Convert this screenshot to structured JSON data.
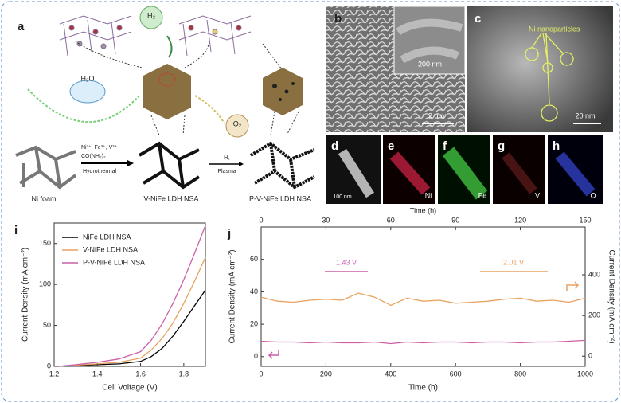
{
  "panels": {
    "a": {
      "label": "a",
      "substrate": "Ni foam",
      "product1": "V-NiFe LDH NSA",
      "product2": "P-V-NiFe LDH NSA",
      "precursors": "Ni²⁺, Fe³⁺, V³⁺",
      "urea": "CO(NH₂)₂",
      "step1": "Hydrothermal",
      "gas": "H₂",
      "step2": "Plasma",
      "water": "H₂O",
      "h2": "H₂",
      "o2": "O₂"
    },
    "b": {
      "label": "b",
      "inset_scale": "200 nm",
      "scale": "2 μm"
    },
    "c": {
      "label": "c",
      "annotation": "Ni nanoparticles",
      "scale": "20 nm"
    },
    "d": {
      "label": "d",
      "scale": "100 nm"
    },
    "e": {
      "label": "e",
      "element": "Ni"
    },
    "f": {
      "label": "f",
      "element": "Fe"
    },
    "g": {
      "label": "g",
      "element": "V"
    },
    "h": {
      "label": "h",
      "element": "O"
    }
  },
  "chart_data": [
    {
      "type": "line",
      "label": "i",
      "xlabel": "Cell Voltage (V)",
      "ylabel": "Current Density (mA cm⁻²)",
      "x": [
        1.22,
        1.3,
        1.4,
        1.5,
        1.6,
        1.65,
        1.7,
        1.75,
        1.8,
        1.85,
        1.9
      ],
      "xlim": [
        1.2,
        1.9
      ],
      "xticks": [
        1.2,
        1.4,
        1.6,
        1.8
      ],
      "ylim": [
        0,
        175
      ],
      "yticks": [
        0,
        50,
        100,
        150
      ],
      "legend": "upper left",
      "series": [
        {
          "name": "NiFe LDH NSA",
          "color": "#000000",
          "values": [
            0,
            1,
            2,
            3,
            6,
            12,
            22,
            37,
            55,
            74,
            93
          ]
        },
        {
          "name": "V-NiFe LDH NSA",
          "color": "#e8a25e",
          "values": [
            0,
            1.5,
            3,
            5,
            10,
            20,
            34,
            53,
            77,
            104,
            133
          ]
        },
        {
          "name": "P-V-NiFe LDH NSA",
          "color": "#cc5fa8",
          "values": [
            0,
            2,
            5,
            9,
            18,
            32,
            52,
            77,
            106,
            138,
            172
          ]
        }
      ]
    },
    {
      "type": "line",
      "label": "j",
      "xlabel": "Time (h)",
      "x2label": "Time (h)",
      "ylabel": "Current Density (mA cm⁻²)",
      "y2label": "Current Density (mA cm⁻²)",
      "x": [
        0,
        50,
        100,
        150,
        200,
        250,
        300,
        350,
        400,
        450,
        500,
        550,
        600,
        650,
        700,
        750,
        800,
        850,
        900,
        950,
        1000
      ],
      "xlim": [
        0,
        1000
      ],
      "xticks": [
        0,
        200,
        400,
        600,
        800,
        1000
      ],
      "x2lim": [
        0,
        150
      ],
      "x2ticks": [
        0,
        30,
        60,
        90,
        120,
        150
      ],
      "ylim": [
        -6,
        80
      ],
      "yticks": [
        0,
        20,
        40,
        60
      ],
      "y2lim": [
        -50,
        635
      ],
      "y2ticks": [
        0,
        200,
        400
      ],
      "annotations": [
        "1.43 V",
        "2.01 V"
      ],
      "series": [
        {
          "color": "#e8a25e",
          "axis": "y2",
          "values": [
            290,
            270,
            265,
            275,
            280,
            275,
            310,
            290,
            250,
            285,
            270,
            275,
            260,
            265,
            270,
            280,
            285,
            270,
            275,
            265,
            285
          ]
        },
        {
          "color": "#cc5fa8",
          "values": [
            9.5,
            9,
            9,
            8.5,
            9,
            8.5,
            8.5,
            9,
            8,
            9,
            8.5,
            9,
            9,
            8.5,
            9,
            9,
            8.5,
            9,
            9,
            9.5,
            10
          ]
        }
      ]
    }
  ]
}
